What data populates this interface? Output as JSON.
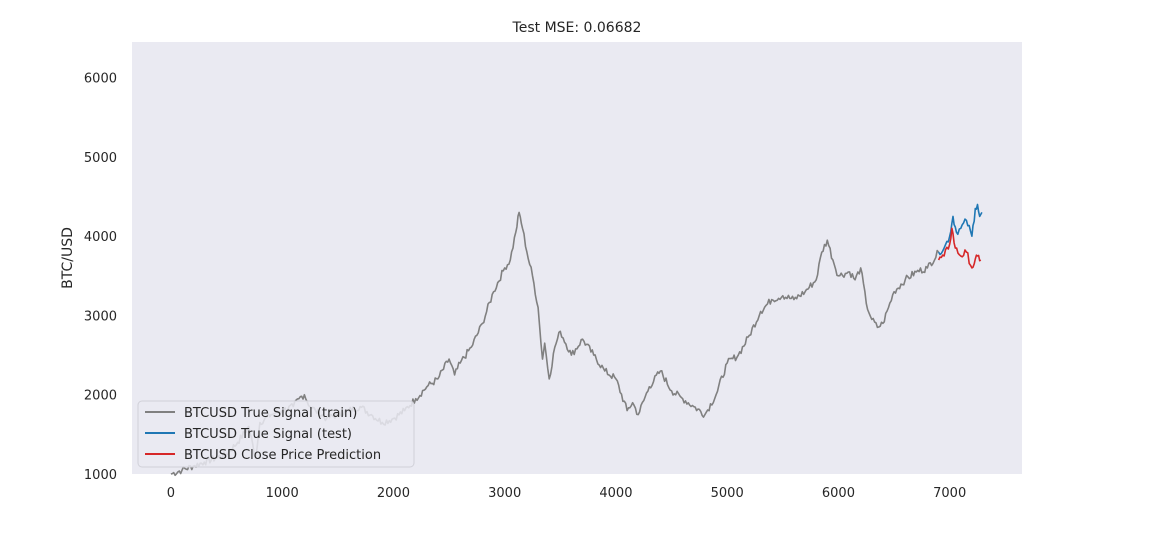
{
  "chart_data": {
    "type": "line",
    "title": "Test MSE: 0.06682",
    "xlabel": "",
    "ylabel": "BTC/USD",
    "xlim": [
      -350,
      7650
    ],
    "ylim": [
      1000,
      6450
    ],
    "xticks": [
      0,
      1000,
      2000,
      3000,
      4000,
      5000,
      6000,
      7000
    ],
    "yticks": [
      1000,
      2000,
      3000,
      4000,
      5000,
      6000
    ],
    "grid": false,
    "legend_position": "lower-left",
    "series": [
      {
        "name": "BTCUSD True Signal (train)",
        "color": "#808080",
        "x": [
          0,
          100,
          200,
          300,
          400,
          500,
          600,
          700,
          760,
          800,
          900,
          1000,
          1100,
          1150,
          1200,
          1250,
          1300,
          1400,
          1500,
          1600,
          1700,
          1800,
          1900,
          2000,
          2100,
          2200,
          2300,
          2400,
          2500,
          2550,
          2600,
          2700,
          2800,
          2900,
          3000,
          3050,
          3100,
          3130,
          3160,
          3200,
          3250,
          3300,
          3340,
          3360,
          3400,
          3450,
          3500,
          3600,
          3700,
          3800,
          3900,
          4000,
          4100,
          4150,
          4200,
          4300,
          4400,
          4500,
          4600,
          4700,
          4800,
          4900,
          5000,
          5100,
          5200,
          5300,
          5400,
          5500,
          5600,
          5700,
          5800,
          5850,
          5900,
          5950,
          6000,
          6100,
          6150,
          6200,
          6250,
          6300,
          6350,
          6400,
          6450,
          6500,
          6600,
          6700,
          6800,
          6900
        ],
        "y": [
          1000,
          1050,
          1100,
          1150,
          1200,
          1250,
          1400,
          1600,
          1200,
          1650,
          1750,
          1800,
          1850,
          1950,
          2000,
          1850,
          1800,
          1700,
          1750,
          1800,
          1850,
          1750,
          1650,
          1700,
          1800,
          1950,
          2100,
          2200,
          2450,
          2250,
          2400,
          2600,
          2900,
          3300,
          3600,
          3700,
          4050,
          4300,
          4100,
          3800,
          3500,
          3100,
          2450,
          2650,
          2200,
          2600,
          2800,
          2500,
          2700,
          2500,
          2300,
          2200,
          1800,
          1900,
          1750,
          2100,
          2300,
          2050,
          1950,
          1850,
          1750,
          2000,
          2400,
          2500,
          2750,
          3050,
          3200,
          3250,
          3200,
          3300,
          3450,
          3800,
          3950,
          3700,
          3500,
          3550,
          3450,
          3600,
          3150,
          2950,
          2850,
          2900,
          3100,
          3300,
          3450,
          3550,
          3600,
          3800
        ]
      },
      {
        "name": "BTCUSD True Signal (test)",
        "color": "#1f77b4",
        "x": [
          6900,
          6950,
          7000,
          7030,
          7060,
          7100,
          7150,
          7200,
          7230,
          7250,
          7270,
          7290
        ],
        "y": [
          3800,
          3850,
          4000,
          4250,
          4050,
          4100,
          4200,
          4000,
          4350,
          4400,
          4250,
          4300
        ]
      },
      {
        "name": "BTCUSD Close Price Prediction",
        "color": "#d62728",
        "x": [
          6900,
          6950,
          7000,
          7020,
          7050,
          7100,
          7150,
          7200,
          7220,
          7250,
          7280
        ],
        "y": [
          3700,
          3750,
          3900,
          4100,
          3850,
          3750,
          3800,
          3600,
          3650,
          3750,
          3700
        ]
      }
    ]
  }
}
